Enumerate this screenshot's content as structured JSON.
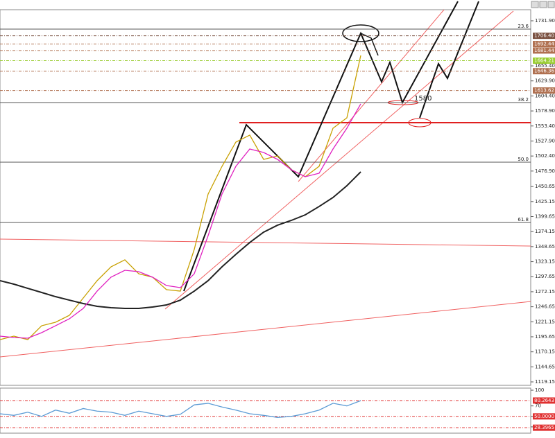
{
  "chart_data": [
    {
      "type": "line",
      "ylim": [
        1113.3,
        1750.7
      ],
      "yticks": [
        {
          "value": 1731.9,
          "label": "1731.90"
        },
        {
          "value": 1655.4,
          "label": "1655.40"
        },
        {
          "value": 1629.9,
          "label": "1629.90"
        },
        {
          "value": 1604.4,
          "label": "1604.40"
        },
        {
          "value": 1578.9,
          "label": "1578.90"
        },
        {
          "value": 1553.4,
          "label": "1553.40"
        },
        {
          "value": 1527.9,
          "label": "1527.90"
        },
        {
          "value": 1502.4,
          "label": "1502.40"
        },
        {
          "value": 1476.9,
          "label": "1476.90"
        },
        1450.65,
        1425.15,
        1399.65,
        1374.15,
        1348.65,
        1323.15,
        1297.65,
        1272.15,
        1246.65,
        1221.15,
        1195.65,
        1170.15,
        1144.65,
        1119.15
      ],
      "levels": [
        {
          "value": 1706.4,
          "label": "1706.40",
          "color": "#7a5040"
        },
        {
          "value": 1692.44,
          "label": "1692.44",
          "color": "#b07050"
        },
        {
          "value": 1681.44,
          "label": "1681.44",
          "color": "#b07050"
        },
        {
          "value": 1664.21,
          "label": "1664.21",
          "color": "#9acd32"
        },
        {
          "value": 1646.36,
          "label": "1646.36",
          "color": "#b07050"
        },
        {
          "value": 1613.62,
          "label": "1613.62",
          "color": "#b07050"
        }
      ],
      "fib_levels": [
        {
          "value": 1717.8,
          "label": "23.6"
        },
        {
          "value": 1593.1,
          "label": "38.2"
        },
        {
          "value": 1492.0,
          "label": "50.0"
        },
        {
          "value": 1389.7,
          "label": "61.8"
        }
      ],
      "annotation": "1580",
      "series": [
        {
          "color": "#c8a000",
          "values": [
            1190.9,
            1196.8,
            1190.9,
            1214.4,
            1220.3,
            1232.1,
            1261.5,
            1290.9,
            1314.4,
            1326.2,
            1302.6,
            1296.7,
            1275.6,
            1273.2,
            1343.8,
            1437.9,
            1484.9,
            1526.1,
            1537.9,
            1496.7,
            1502.6,
            1479.1,
            1467.3,
            1485.0,
            1549.6,
            1567.2,
            1673.1
          ]
        },
        {
          "color": "#222222",
          "values": [
            1290.9,
            1285.0,
            1277.9,
            1270.9,
            1263.8,
            1257.9,
            1252.1,
            1247.4,
            1245.0,
            1243.8,
            1243.8,
            1246.2,
            1249.7,
            1257.9,
            1273.2,
            1290.9,
            1314.4,
            1335.6,
            1355.6,
            1373.2,
            1385.0,
            1393.2,
            1402.6,
            1416.8,
            1432.0,
            1452.0,
            1475.5
          ]
        },
        {
          "color": "#e020c0",
          "values": [
            1196.8,
            1194.4,
            1193.3,
            1202.7,
            1214.4,
            1226.2,
            1243.8,
            1273.2,
            1296.8,
            1308.5,
            1306.2,
            1296.8,
            1282.6,
            1279.1,
            1302.6,
            1367.3,
            1437.9,
            1484.9,
            1514.3,
            1508.4,
            1496.7,
            1479.1,
            1467.3,
            1473.2,
            1514.3,
            1549.6,
            1590.8
          ]
        }
      ]
    },
    {
      "type": "line",
      "ylim": [
        18,
        104
      ],
      "yticks": [
        100,
        70,
        50,
        30
      ],
      "levels": [
        {
          "value": 80.2643,
          "label": "80.2643",
          "color": "#e03030"
        },
        {
          "value": 50,
          "label": "50.0000",
          "color": "#e03030"
        },
        {
          "value": 28.3965,
          "label": "28.3965",
          "color": "#e03030"
        }
      ],
      "series": [
        {
          "color": "#5b9bd5",
          "values": [
            55,
            52,
            58,
            50,
            62,
            56,
            65,
            60,
            58,
            52,
            60,
            55,
            50,
            54,
            72,
            75,
            68,
            62,
            55,
            52,
            48,
            50,
            55,
            62,
            75,
            70,
            80
          ]
        }
      ]
    }
  ]
}
